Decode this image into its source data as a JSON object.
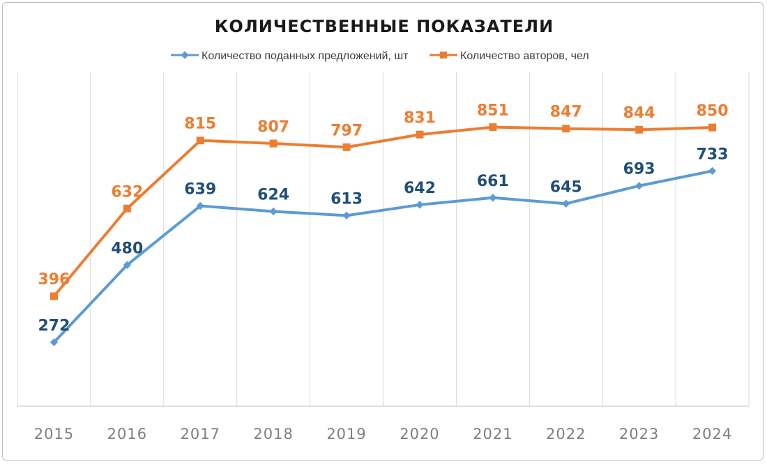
{
  "chart_data": {
    "type": "line",
    "title": "КОЛИЧЕСТВЕННЫЕ ПОКАЗАТЕЛИ",
    "categories": [
      "2015",
      "2016",
      "2017",
      "2018",
      "2019",
      "2020",
      "2021",
      "2022",
      "2023",
      "2024"
    ],
    "series": [
      {
        "name": "Количество поданных предложений, шт",
        "values": [
          272,
          480,
          639,
          624,
          613,
          642,
          661,
          645,
          693,
          733
        ],
        "color": "#5b9bd5",
        "label_color": "#1f4e79",
        "marker": "diamond"
      },
      {
        "name": "Количество авторов, чел",
        "values": [
          396,
          632,
          815,
          807,
          797,
          831,
          851,
          847,
          844,
          850
        ],
        "color": "#ed7d31",
        "label_color": "#ed7d31",
        "marker": "square"
      }
    ],
    "ylim": [
      100,
      1000
    ],
    "grid": "vertical",
    "legend": "top"
  }
}
